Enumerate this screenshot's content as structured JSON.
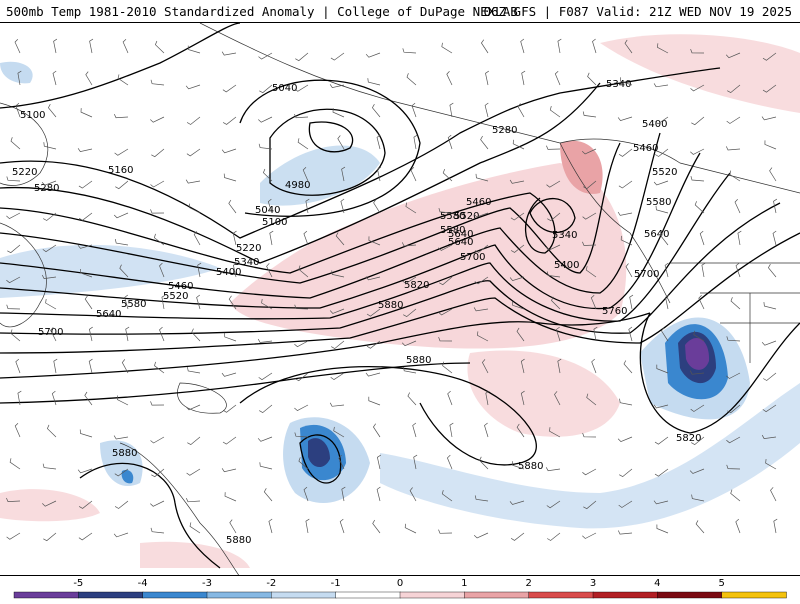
{
  "header": {
    "left": "500mb Temp 1981-2010 Standardized Anomaly | College of DuPage NEXLAB",
    "right": "06Z GFS | F087 Valid: 21Z WED NOV 19 2025"
  },
  "contours": {
    "labels": [
      "5100",
      "5040",
      "4980",
      "5040",
      "5100",
      "5220",
      "5160",
      "5280",
      "5220",
      "5280",
      "5340",
      "5400",
      "5460",
      "5520",
      "5580",
      "5640",
      "5700",
      "5580",
      "5640",
      "5700",
      "5820",
      "5880",
      "5880",
      "5880",
      "5880",
      "5880",
      "5820",
      "5760",
      "5700",
      "5640",
      "5580",
      "5520",
      "5460",
      "5400",
      "5340",
      "5340",
      "5400",
      "5460",
      "5520",
      "5580",
      "5640",
      "5460",
      "5520",
      "5340",
      "5280"
    ]
  },
  "colorbar": {
    "ticks": [
      "-5",
      "-4",
      "-3",
      "-2",
      "-1",
      "0",
      "1",
      "2",
      "3",
      "4",
      "5"
    ],
    "colors": [
      "#6a3d9a",
      "#2c3f7f",
      "#3a87cf",
      "#86b8e3",
      "#c5dbf0",
      "#ffffff",
      "#f6d3d6",
      "#e9a3a6",
      "#d94b4b",
      "#b21f24",
      "#7a0a12",
      "#f4c20d"
    ]
  }
}
